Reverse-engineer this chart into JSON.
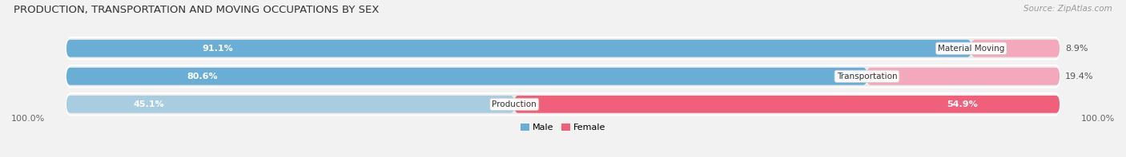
{
  "title": "PRODUCTION, TRANSPORTATION AND MOVING OCCUPATIONS BY SEX",
  "source": "Source: ZipAtlas.com",
  "categories": [
    "Material Moving",
    "Transportation",
    "Production"
  ],
  "male_pct": [
    91.1,
    80.6,
    45.1
  ],
  "female_pct": [
    8.9,
    19.4,
    54.9
  ],
  "male_color_dominant": "#6aaed6",
  "male_color_minor": "#a8cce0",
  "female_color_dominant": "#f0607a",
  "female_color_minor": "#f4a8bc",
  "bar_bg_color": "#e0e0e0",
  "row_bg_color": "#ebebeb",
  "bg_color": "#f2f2f2",
  "title_fontsize": 9.5,
  "source_fontsize": 7.5,
  "label_fontsize": 8,
  "cat_label_fontsize": 7.5,
  "axis_label": "100.0%",
  "legend_male": "Male",
  "legend_female": "Female",
  "bar_xleft": 5.0,
  "bar_xright": 95.0
}
